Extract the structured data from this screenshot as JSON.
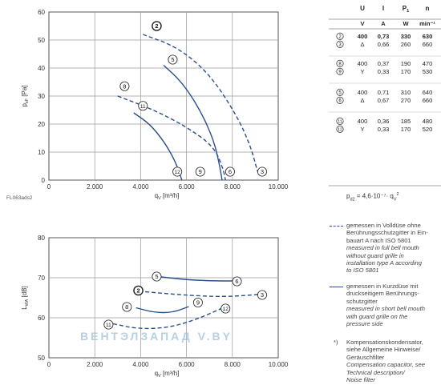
{
  "figure_code": "FL063ads2",
  "chart_data": [
    {
      "type": "line",
      "xlabel": "q",
      "xlabel_sub": "V",
      "xlabel_unit": "[m³/h]",
      "ylabel": "p",
      "ylabel_sub": "sF",
      "ylabel_unit": "[Pa]",
      "xlim": [
        0,
        10000
      ],
      "ylim": [
        0,
        60
      ],
      "x_ticks": [
        0,
        2000,
        4000,
        6000,
        8000,
        10000
      ],
      "x_tick_labels": [
        "0",
        "2.000",
        "4.000",
        "6.000",
        "8.000",
        "10.000"
      ],
      "y_ticks": [
        0,
        10,
        20,
        30,
        40,
        50,
        60
      ],
      "y_tick_labels": [
        "0",
        "10",
        "20",
        "30",
        "40",
        "50",
        "60"
      ],
      "grid": true,
      "series": [
        {
          "name": "2",
          "style": "dashed",
          "points": [
            [
              4100,
              52
            ],
            [
              5600,
              47.5
            ],
            [
              7000,
              38
            ],
            [
              8200,
              23
            ],
            [
              8800,
              12
            ],
            [
              9100,
              3
            ]
          ],
          "label_at": [
            4700,
            55
          ]
        },
        {
          "name": "3",
          "style": "solid",
          "points": [],
          "label_at": [
            9300,
            3
          ]
        },
        {
          "name": "5",
          "style": "solid",
          "points": [
            [
              5000,
              41
            ],
            [
              5800,
              35
            ],
            [
              6600,
              25
            ],
            [
              7200,
              14
            ],
            [
              7450,
              5
            ],
            [
              7550,
              0
            ]
          ],
          "label_at": [
            5400,
            43
          ]
        },
        {
          "name": "6",
          "style": "solid",
          "points": [],
          "label_at": [
            7900,
            3
          ]
        },
        {
          "name": "8",
          "style": "dashed",
          "points": [
            [
              3000,
              30
            ],
            [
              4600,
              25
            ],
            [
              6000,
              19
            ],
            [
              7200,
              12
            ],
            [
              7600,
              4
            ],
            [
              7700,
              0
            ]
          ],
          "label_at": [
            3300,
            33.5
          ]
        },
        {
          "name": "9",
          "style": "solid",
          "points": [],
          "label_at": [
            6600,
            3
          ]
        },
        {
          "name": "11",
          "style": "solid",
          "points": [
            [
              3700,
              24
            ],
            [
              4400,
              20
            ],
            [
              5000,
              14
            ],
            [
              5500,
              7
            ],
            [
              5800,
              0
            ]
          ],
          "label_at": [
            4100,
            26.5
          ]
        },
        {
          "name": "12",
          "style": "solid",
          "points": [],
          "label_at": [
            5600,
            3
          ]
        }
      ]
    },
    {
      "type": "line",
      "xlabel": "q",
      "xlabel_sub": "V",
      "xlabel_unit": "[m³/h]",
      "ylabel": "L",
      "ylabel_sub": "WA",
      "ylabel_unit": "[dB]",
      "xlim": [
        0,
        10000
      ],
      "ylim": [
        50,
        80
      ],
      "x_ticks": [
        0,
        2000,
        4000,
        6000,
        8000,
        10000
      ],
      "x_tick_labels": [
        "0",
        "2.000",
        "4.000",
        "6.000",
        "8.000",
        "10.000"
      ],
      "y_ticks": [
        50,
        60,
        70,
        80
      ],
      "y_tick_labels": [
        "50",
        "60",
        "70",
        "80"
      ],
      "grid": true,
      "series": [
        {
          "name": "2",
          "style": "dashed",
          "points": [
            [
              4200,
              66.5
            ],
            [
              5800,
              65.7
            ],
            [
              7600,
              65.2
            ],
            [
              9100,
              65.8
            ]
          ],
          "label_at": [
            3900,
            66.8
          ]
        },
        {
          "name": "3",
          "style": "solid",
          "points": [],
          "label_at": [
            9300,
            65.7
          ]
        },
        {
          "name": "5",
          "style": "solid",
          "points": [
            [
              4900,
              70.2
            ],
            [
              6200,
              69.4
            ],
            [
              7400,
              69.2
            ],
            [
              8100,
              69.2
            ]
          ],
          "label_at": [
            4700,
            70.3
          ]
        },
        {
          "name": "6",
          "style": "solid",
          "points": [],
          "label_at": [
            8200,
            69.1
          ]
        },
        {
          "name": "8",
          "style": "solid",
          "points": [
            [
              3800,
              62.5
            ],
            [
              4600,
              61.3
            ],
            [
              5400,
              61.3
            ],
            [
              6100,
              62.8
            ]
          ],
          "label_at": [
            3400,
            62.7
          ]
        },
        {
          "name": "9",
          "style": "solid",
          "points": [],
          "label_at": [
            6500,
            63.8
          ]
        },
        {
          "name": "11",
          "style": "dashed",
          "points": [
            [
              2800,
              58.5
            ],
            [
              3900,
              57.2
            ],
            [
              5200,
              57.5
            ],
            [
              6400,
              59.5
            ],
            [
              7600,
              62.5
            ]
          ],
          "label_at": [
            2600,
            58.3
          ]
        },
        {
          "name": "12",
          "style": "solid",
          "points": [],
          "label_at": [
            7700,
            62.3
          ]
        }
      ]
    }
  ],
  "specs_table": {
    "headers": [
      "U",
      "I",
      "P",
      "n"
    ],
    "header_subs": [
      "",
      "",
      "1",
      ""
    ],
    "units": [
      "V",
      "A",
      "W",
      "min⁻¹"
    ],
    "groups": [
      [
        {
          "curve": "2",
          "U": "400",
          "I": "0,73",
          "P": "330",
          "n": "630",
          "bold": true
        },
        {
          "curve": "3",
          "U": "Δ",
          "I": "0,66",
          "P": "260",
          "n": "660",
          "bold": false
        }
      ],
      [
        {
          "curve": "8",
          "U": "400",
          "I": "0,37",
          "P": "190",
          "n": "470",
          "bold": false
        },
        {
          "curve": "9",
          "U": "Y",
          "I": "0,33",
          "P": "170",
          "n": "530",
          "bold": false
        }
      ],
      [
        {
          "curve": "5",
          "U": "400",
          "I": "0,71",
          "P": "310",
          "n": "640",
          "bold": false
        },
        {
          "curve": "6",
          "U": "Δ",
          "I": "0,67",
          "P": "270",
          "n": "660",
          "bold": false
        }
      ],
      [
        {
          "curve": "11",
          "U": "400",
          "I": "0,36",
          "P": "185",
          "n": "480",
          "bold": false
        },
        {
          "curve": "12",
          "U": "Y",
          "I": "0,33",
          "P": "170",
          "n": "520",
          "bold": false
        }
      ]
    ]
  },
  "formula": "p",
  "formula_sub": "d2",
  "formula_rest": " = 4,6·10⁻⁷· q",
  "formula_sub2": "V",
  "formula_sup": "2",
  "legend": {
    "dashed": {
      "de": [
        "gemessen in Volldüse ohne",
        "Berührungsschutzgitter in Ein-",
        "bauart A nach ISO 5801"
      ],
      "en": [
        "measured in full bell mouth",
        "without guard grille in",
        "installation type A according",
        "to ISO 5801"
      ]
    },
    "solid": {
      "de": [
        "gemessen in Kurzdüse mit",
        "druckseitigem Berührungs-",
        "schutzgitter"
      ],
      "en": [
        "measured in short bell mouth",
        "with guard grille on the",
        "pressure side"
      ]
    },
    "note_marker": "*)",
    "note": {
      "de": [
        "Kompensationskondensator,",
        "siehe Allgemeine Hinweise/",
        "Geräuschfilter"
      ],
      "en": [
        "Compensation capacitor, see",
        "Technical description/",
        "Noise filter"
      ]
    }
  },
  "watermark": "ВЕНТЭЛЗАПАД        V.BY"
}
